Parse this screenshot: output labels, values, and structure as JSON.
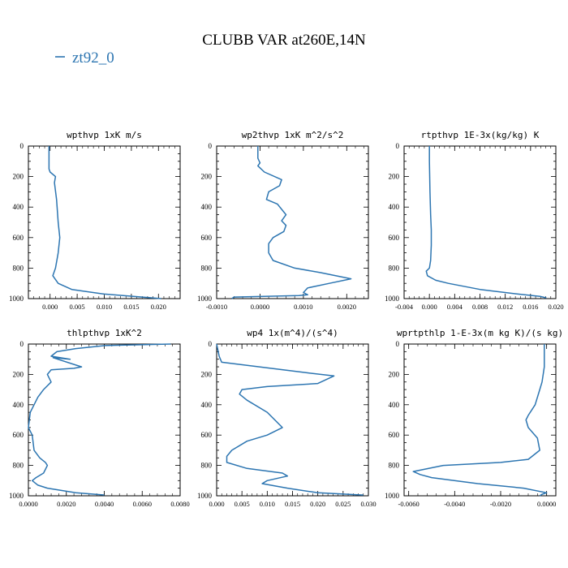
{
  "figure": {
    "title": "CLUBB VAR at260E,14N",
    "legend_label": "zt92_0",
    "line_color": "#2c75b1"
  },
  "chart_data": [
    {
      "type": "line",
      "title": "wpthvp  1xK m/s",
      "ylim": [
        1000,
        0
      ],
      "xlim": [
        -0.004,
        0.024
      ],
      "xticks": [
        "0.000",
        "0.005",
        "0.010",
        "0.015",
        "0.020"
      ],
      "xtick_values": [
        0.0,
        0.005,
        0.01,
        0.015,
        0.02
      ],
      "yticks": [
        "0",
        "200",
        "400",
        "600",
        "800",
        "1000"
      ],
      "series": [
        {
          "x": [
            -0.0002,
            -0.0002,
            -0.0002,
            0.0,
            0.001,
            0.0008,
            0.0012,
            0.0015,
            0.0018,
            0.0015,
            0.001,
            0.0005,
            0.0015,
            0.004,
            0.01,
            0.017,
            0.0205
          ],
          "y": [
            0,
            50,
            150,
            170,
            200,
            240,
            350,
            500,
            600,
            700,
            800,
            850,
            900,
            940,
            970,
            990,
            1000
          ]
        }
      ]
    },
    {
      "type": "line",
      "title": "wp2thvp  1xK m^2/s^2",
      "ylim": [
        1000,
        0
      ],
      "xlim": [
        -0.001,
        0.0025
      ],
      "xticks": [
        "-0.0010",
        "0.0000",
        "0.0010",
        "0.0020"
      ],
      "xtick_values": [
        -0.001,
        0.0,
        0.001,
        0.002
      ],
      "yticks": [
        "0",
        "200",
        "400",
        "600",
        "800",
        "1000"
      ],
      "series": [
        {
          "x": [
            -5e-05,
            -5e-05,
            0.0,
            -5e-05,
            0.0001,
            0.0005,
            0.00045,
            0.0002,
            0.00015,
            0.0004,
            0.0006,
            0.0005,
            0.0006,
            0.00055,
            0.0003,
            0.0002,
            0.0002,
            0.0003,
            0.0008,
            0.0014,
            0.0021,
            0.0016,
            0.0011,
            0.001,
            0.0011,
            0.0009,
            -0.0006,
            -0.00065
          ],
          "y": [
            0,
            80,
            110,
            130,
            170,
            220,
            260,
            300,
            350,
            380,
            450,
            490,
            520,
            560,
            600,
            640,
            700,
            750,
            800,
            830,
            870,
            900,
            930,
            960,
            975,
            980,
            990,
            1000
          ]
        }
      ]
    },
    {
      "type": "line",
      "title": "rtpthvp  1E-3x(kg/kg) K",
      "ylim": [
        1000,
        0
      ],
      "xlim": [
        -0.004,
        0.02
      ],
      "xticks": [
        "-0.004",
        "0.000",
        "0.004",
        "0.008",
        "0.012",
        "0.016",
        "0.020"
      ],
      "xtick_values": [
        -0.004,
        0.0,
        0.004,
        0.008,
        0.012,
        0.016,
        0.02
      ],
      "yticks": [
        "0",
        "200",
        "400",
        "600",
        "800",
        "1000"
      ],
      "series": [
        {
          "x": [
            0.0,
            0.0,
            0.0001,
            0.0002,
            0.0003,
            0.0003,
            0.0002,
            0.0,
            -0.0005,
            -0.0003,
            0.001,
            0.003,
            0.008,
            0.014,
            0.0175,
            0.0185
          ],
          "y": [
            0,
            100,
            300,
            450,
            550,
            650,
            750,
            800,
            820,
            850,
            880,
            900,
            940,
            970,
            985,
            995
          ]
        }
      ]
    },
    {
      "type": "line",
      "title": "thlpthvp  1xK^2",
      "ylim": [
        1000,
        0
      ],
      "xlim": [
        0.0,
        0.008
      ],
      "xticks": [
        "0.0000",
        "0.0020",
        "0.0040",
        "0.0060",
        "0.0080"
      ],
      "xtick_values": [
        0.0,
        0.002,
        0.004,
        0.006,
        0.008
      ],
      "yticks": [
        "0",
        "200",
        "400",
        "600",
        "800",
        "1000"
      ],
      "series": [
        {
          "x": [
            0.0075,
            0.004,
            0.0025,
            0.0015,
            0.0012,
            0.0022,
            0.0013,
            0.0028,
            0.0024,
            0.0012,
            0.001,
            0.0012,
            0.0008,
            0.0005,
            0.0003,
            0.0001,
            0.0,
            0.0002,
            0.0003,
            0.0006,
            0.0009,
            0.001,
            0.0008,
            0.0004,
            0.0002,
            0.0005,
            0.001,
            0.0025,
            0.004
          ],
          "y": [
            0,
            10,
            30,
            50,
            80,
            100,
            90,
            150,
            160,
            170,
            200,
            250,
            300,
            350,
            400,
            450,
            550,
            600,
            700,
            750,
            780,
            800,
            850,
            880,
            900,
            930,
            950,
            980,
            995
          ]
        }
      ]
    },
    {
      "type": "line",
      "title": "wp4  1x(m^4)/(s^4)",
      "ylim": [
        1000,
        0
      ],
      "xlim": [
        0.0,
        0.03
      ],
      "xticks": [
        "0.000",
        "0.005",
        "0.010",
        "0.015",
        "0.020",
        "0.025",
        "0.030"
      ],
      "xtick_values": [
        0.0,
        0.005,
        0.01,
        0.015,
        0.02,
        0.025,
        0.03
      ],
      "yticks": [
        "0",
        "200",
        "400",
        "600",
        "800",
        "1000"
      ],
      "series": [
        {
          "x": [
            0.0,
            0.0005,
            0.001,
            0.018,
            0.0232,
            0.02,
            0.01,
            0.005,
            0.0045,
            0.006,
            0.01,
            0.013,
            0.01,
            0.006,
            0.003,
            0.002,
            0.002,
            0.006,
            0.013,
            0.014,
            0.01,
            0.009,
            0.014,
            0.02,
            0.029
          ],
          "y": [
            0,
            80,
            120,
            190,
            210,
            260,
            280,
            300,
            330,
            370,
            450,
            550,
            600,
            640,
            700,
            740,
            780,
            820,
            850,
            870,
            900,
            920,
            950,
            980,
            995
          ]
        }
      ]
    },
    {
      "type": "line",
      "title": "wprtpthlp  1-E-3x(m kg K)/(s kg)",
      "ylim": [
        1000,
        0
      ],
      "xlim": [
        -0.0062,
        0.0004
      ],
      "xticks": [
        "-0.0060",
        "-0.0040",
        "-0.0020",
        "0.0000"
      ],
      "xtick_values": [
        -0.006,
        -0.004,
        -0.002,
        0.0
      ],
      "yticks": [
        "0",
        "200",
        "400",
        "600",
        "800",
        "1000"
      ],
      "series": [
        {
          "x": [
            -0.0001,
            -0.0001,
            -0.0002,
            -0.0003,
            -0.0005,
            -0.0008,
            -0.0009,
            -0.0008,
            -0.0004,
            -0.0003,
            -0.0008,
            -0.002,
            -0.0045,
            -0.0058,
            -0.0055,
            -0.005,
            -0.003,
            -0.001,
            0.0,
            -0.0002,
            -0.0003
          ],
          "y": [
            0,
            150,
            250,
            300,
            400,
            470,
            500,
            550,
            620,
            700,
            760,
            780,
            800,
            840,
            860,
            880,
            920,
            950,
            980,
            990,
            1000
          ]
        }
      ]
    }
  ]
}
